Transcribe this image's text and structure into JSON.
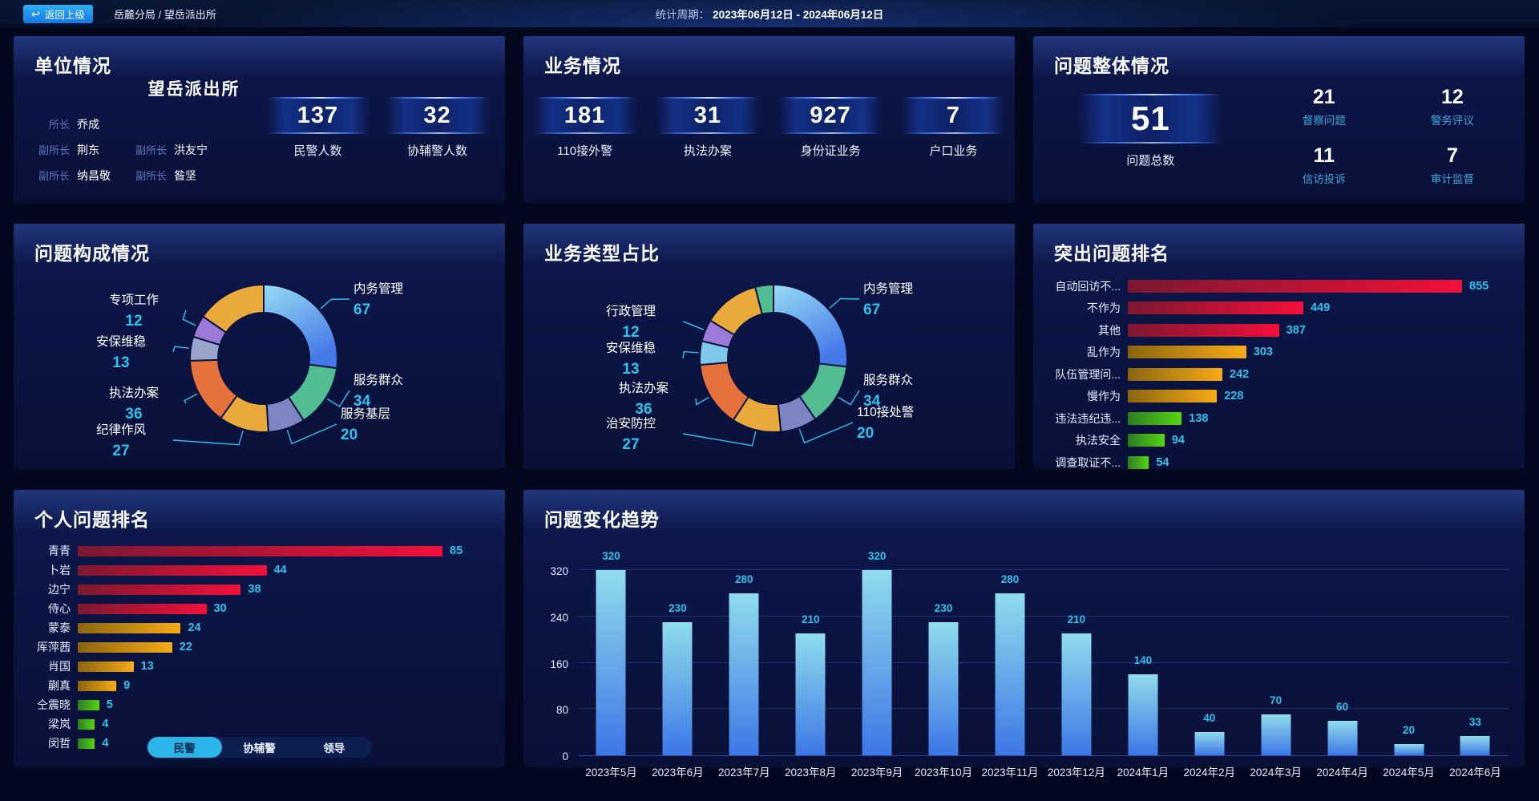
{
  "top_bar": {
    "back_button": "返回上级",
    "breadcrumb": "岳麓分局 / 望岳派出所",
    "period_label": "统计周期：",
    "period_value": "2023年06月12日 - 2024年06月12日"
  },
  "colors": {
    "value_cyan": "#2cc3ef",
    "overview_label_cyan": "#3fa6d9",
    "back_button_blue": "#1e8fe8",
    "role_label_blue": "#6073b8"
  },
  "panels": {
    "unit": {
      "title": "单位情况",
      "station_name": "望岳派出所",
      "leaders": [
        {
          "role": "所长",
          "name": "乔成"
        },
        {
          "role": "副所长",
          "name": "荆东"
        },
        {
          "role": "副所长",
          "name": "洪友宁"
        },
        {
          "role": "副所长",
          "name": "纳昌敬"
        },
        {
          "role": "副所长",
          "name": "昝坚"
        }
      ],
      "stats": [
        {
          "value": "137",
          "label": "民警人数"
        },
        {
          "value": "32",
          "label": "协辅警人数"
        }
      ]
    },
    "business": {
      "title": "业务情况",
      "stats": [
        {
          "value": "181",
          "label": "110接外警"
        },
        {
          "value": "31",
          "label": "执法办案"
        },
        {
          "value": "927",
          "label": "身份证业务"
        },
        {
          "value": "7",
          "label": "户口业务"
        }
      ]
    },
    "problems_overview": {
      "title": "问题整体情况",
      "total": {
        "value": "51",
        "label": "问题总数"
      },
      "stats": [
        {
          "value": "21",
          "label": "督察问题"
        },
        {
          "value": "12",
          "label": "警务评议"
        },
        {
          "value": "11",
          "label": "信访投诉"
        },
        {
          "value": "7",
          "label": "审计监督"
        }
      ]
    },
    "problem_composition": {
      "title": "问题构成情况"
    },
    "business_type_ratio": {
      "title": "业务类型占比"
    },
    "outstanding_problems": {
      "title": "突出问题排名"
    },
    "personal_ranking": {
      "title": "个人问题排名",
      "tabs": [
        {
          "label": "民警",
          "active": true
        },
        {
          "label": "协辅警",
          "active": false
        },
        {
          "label": "领导",
          "active": false
        }
      ]
    },
    "problem_trend": {
      "title": "问题变化趋势"
    }
  },
  "chart_data": [
    {
      "id": "problem_composition",
      "type": "pie",
      "title": "问题构成情况",
      "legend_position": "callout",
      "slices": [
        {
          "label": "内务管理",
          "value": 67,
          "color": "grad"
        },
        {
          "label": "服务群众",
          "value": 34,
          "color": "#53bd92"
        },
        {
          "label": "服务基层",
          "value": 20,
          "color": "#7d86c2"
        },
        {
          "label": "纪律作风",
          "value": 27,
          "color": "#eaa93c"
        },
        {
          "label": "执法办案",
          "value": 36,
          "color": "#e5713c"
        },
        {
          "label": "安保维稳",
          "value": 13,
          "color": "#9aa3cc"
        },
        {
          "label": "专项工作",
          "value": 12,
          "color": "#9c7ad8"
        },
        {
          "label": "",
          "value": 38,
          "color": "#eaa93c",
          "estimated": true
        }
      ]
    },
    {
      "id": "business_type_ratio",
      "type": "pie",
      "title": "业务类型占比",
      "legend_position": "callout",
      "slices": [
        {
          "label": "内务管理",
          "value": 67,
          "color": "grad"
        },
        {
          "label": "服务群众",
          "value": 34,
          "color": "#53bd92"
        },
        {
          "label": "110接处警",
          "value": 20,
          "color": "#7d86c2"
        },
        {
          "label": "治安防控",
          "value": 27,
          "color": "#eaa93c"
        },
        {
          "label": "执法办案",
          "value": 36,
          "color": "#e5713c"
        },
        {
          "label": "安保维稳",
          "value": 13,
          "color": "#7fc8ea"
        },
        {
          "label": "行政管理",
          "value": 12,
          "color": "#9c7ad8"
        },
        {
          "label": "",
          "value": 31,
          "color": "#eaa93c",
          "estimated": true
        },
        {
          "label": "",
          "value": 10,
          "color": "#53bd92",
          "estimated": true
        }
      ]
    },
    {
      "id": "outstanding_problems",
      "type": "bar",
      "orientation": "horizontal",
      "title": "突出问题排名",
      "categories": [
        "自动回访不...",
        "不作为",
        "其他",
        "乱作为",
        "队伍管理问...",
        "慢作为",
        "违法违纪违...",
        "执法安全",
        "调查取证不..."
      ],
      "values": [
        855,
        449,
        387,
        303,
        242,
        228,
        138,
        94,
        54
      ],
      "row_colors": [
        "red",
        "red",
        "red",
        "gold",
        "gold",
        "gold",
        "green",
        "green",
        "green"
      ],
      "palette": {
        "red": [
          "#7c1830",
          "#f2103a"
        ],
        "gold": [
          "#8a650f",
          "#f7ab16"
        ],
        "green": [
          "#2c7c22",
          "#55d415"
        ]
      },
      "value_color": "#2cc3ef"
    },
    {
      "id": "personal_ranking",
      "type": "bar",
      "orientation": "horizontal",
      "title": "个人问题排名",
      "categories": [
        "青青",
        "卜岩",
        "边宁",
        "侍心",
        "蒙泰",
        "厍萍茜",
        "肖国",
        "蒯真",
        "仝震晓",
        "梁岚",
        "闵哲"
      ],
      "values": [
        85,
        44,
        38,
        30,
        24,
        22,
        13,
        9,
        5,
        4,
        4
      ],
      "row_colors": [
        "red",
        "red",
        "red",
        "red",
        "gold",
        "gold",
        "gold",
        "gold",
        "green",
        "green",
        "green"
      ],
      "palette": {
        "red": [
          "#7c1830",
          "#f2103a"
        ],
        "gold": [
          "#8a650f",
          "#f7ab16"
        ],
        "green": [
          "#2c7c22",
          "#55d415"
        ]
      },
      "value_color": "#2cc3ef"
    },
    {
      "id": "problem_trend",
      "type": "bar",
      "orientation": "vertical",
      "title": "问题变化趋势",
      "categories": [
        "2023年5月",
        "2023年6月",
        "2023年7月",
        "2023年8月",
        "2023年9月",
        "2023年10月",
        "2023年11月",
        "2023年12月",
        "2024年1月",
        "2024年2月",
        "2024年3月",
        "2024年4月",
        "2024年5月",
        "2024年6月"
      ],
      "values": [
        320,
        230,
        280,
        210,
        320,
        230,
        280,
        210,
        140,
        40,
        70,
        60,
        20,
        33
      ],
      "yticks": [
        0,
        80,
        160,
        240,
        320
      ],
      "ylim": [
        0,
        352
      ],
      "grid": true,
      "bar_gradient": [
        "#8fdcec",
        "#3c77e6"
      ],
      "value_color": "#2cc3ef"
    }
  ]
}
